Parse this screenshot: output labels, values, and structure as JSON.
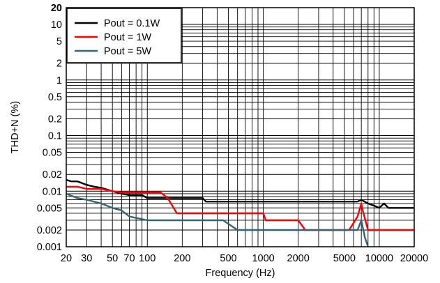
{
  "chart_data": {
    "type": "line",
    "title": "",
    "xlabel": "Frequency (Hz)",
    "ylabel": "THD+N (%)",
    "xscale": "log",
    "yscale": "log",
    "xlim": [
      20,
      20000
    ],
    "ylim": [
      0.001,
      20
    ],
    "grid": true,
    "legend_position": "top-left",
    "x_ticks": [
      20,
      30,
      50,
      70,
      100,
      200,
      500,
      1000,
      2000,
      5000,
      10000,
      20000
    ],
    "x_tick_labels": [
      "20",
      "30",
      "50",
      "70",
      "100",
      "200",
      "500",
      "1000",
      "2000",
      "5000",
      "10000",
      "20000"
    ],
    "y_ticks": [
      0.001,
      0.002,
      0.005,
      0.01,
      0.02,
      0.05,
      0.1,
      0.2,
      0.5,
      1,
      2,
      5,
      10,
      20
    ],
    "y_tick_labels": [
      "0.001",
      "0.002",
      "0.005",
      "0.01",
      "0.02",
      "0.05",
      "0.1",
      "0.2",
      "0.5",
      "1",
      "2",
      "5",
      "10",
      "20"
    ],
    "series": [
      {
        "name": "Pout = 0.1W",
        "color": "#000000",
        "x": [
          20,
          22,
          25,
          30,
          35,
          40,
          50,
          60,
          70,
          80,
          90,
          100,
          120,
          150,
          200,
          300,
          320,
          500,
          1000,
          2000,
          5000,
          6500,
          7000,
          8000,
          9000,
          10000,
          11000,
          12000,
          15000,
          20000
        ],
        "y": [
          0.016,
          0.015,
          0.015,
          0.013,
          0.012,
          0.0115,
          0.01,
          0.009,
          0.0085,
          0.0085,
          0.0085,
          0.0075,
          0.0075,
          0.0075,
          0.0075,
          0.0075,
          0.0065,
          0.0065,
          0.0065,
          0.0065,
          0.0065,
          0.0065,
          0.007,
          0.006,
          0.0055,
          0.005,
          0.006,
          0.005,
          0.005,
          0.005
        ]
      },
      {
        "name": "Pout = 1W",
        "color": "#ff0000",
        "x": [
          20,
          25,
          30,
          40,
          50,
          60,
          70,
          100,
          130,
          150,
          180,
          200,
          500,
          1000,
          1050,
          2000,
          2300,
          5000,
          5500,
          6500,
          7000,
          7200,
          8000,
          20000
        ],
        "y": [
          0.012,
          0.012,
          0.011,
          0.011,
          0.01,
          0.0095,
          0.0095,
          0.0095,
          0.0095,
          0.0075,
          0.004,
          0.004,
          0.004,
          0.004,
          0.003,
          0.003,
          0.002,
          0.002,
          0.002,
          0.0035,
          0.006,
          0.0045,
          0.002,
          0.002
        ]
      },
      {
        "name": "Pout = 5W",
        "color": "#336677",
        "x": [
          20,
          25,
          30,
          40,
          50,
          60,
          70,
          100,
          200,
          300,
          450,
          600,
          1000,
          2000,
          5000,
          6300,
          6500,
          7000,
          7500,
          8000
        ],
        "y": [
          0.009,
          0.0075,
          0.007,
          0.006,
          0.005,
          0.0045,
          0.0035,
          0.003,
          0.003,
          0.003,
          0.003,
          0.002,
          0.002,
          0.002,
          0.002,
          0.002,
          0.002,
          0.003,
          0.0015,
          0.001
        ]
      }
    ]
  }
}
